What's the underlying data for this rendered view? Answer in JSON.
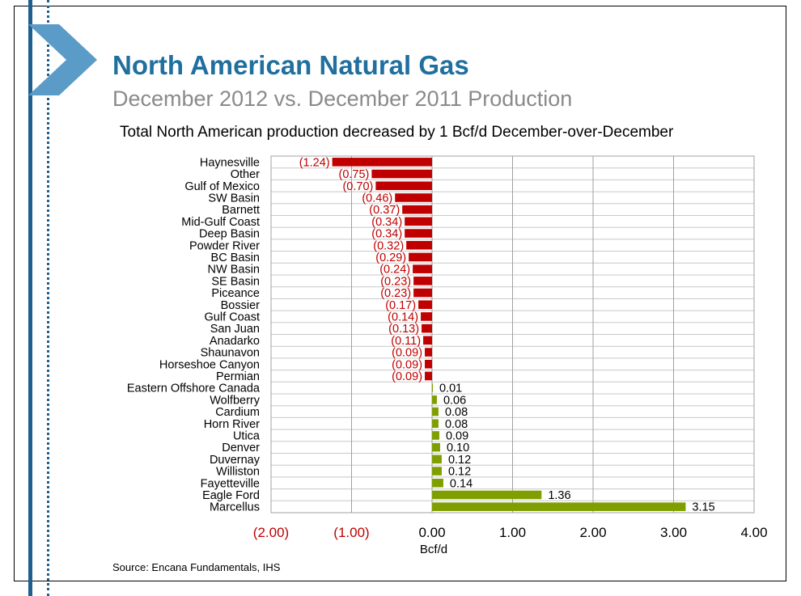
{
  "slide": {
    "title": "North American Natural Gas",
    "subtitle": "December 2012 vs. December 2011 Production",
    "headline": "Total North American production decreased by 1 Bcf/d December-over-December",
    "source": "Source: Encana Fundamentals, IHS",
    "accent_color": "#1f6f9f"
  },
  "chart_data": {
    "type": "bar",
    "orientation": "horizontal",
    "xlabel": "Bcf/d",
    "ylabel": "",
    "xlim": [
      -2,
      4
    ],
    "x_ticks": [
      -2,
      -1,
      0,
      1,
      2,
      3,
      4
    ],
    "x_tick_labels": [
      "(2.00)",
      "(1.00)",
      "0.00",
      "1.00",
      "2.00",
      "3.00",
      "4.00"
    ],
    "grid": "vertical",
    "negative_color": "#c00000",
    "positive_color": "#7f9f00",
    "categories": [
      "Haynesville",
      "Other",
      "Gulf of Mexico",
      "SW Basin",
      "Barnett",
      "Mid-Gulf Coast",
      "Deep Basin",
      "Powder River",
      "BC Basin",
      "NW Basin",
      "SE Basin",
      "Piceance",
      "Bossier",
      "Gulf Coast",
      "San Juan",
      "Anadarko",
      "Shaunavon",
      "Horseshoe Canyon",
      "Permian",
      "Eastern Offshore Canada",
      "Wolfberry",
      "Cardium",
      "Horn River",
      "Utica",
      "Denver",
      "Duvernay",
      "Williston",
      "Fayetteville",
      "Eagle Ford",
      "Marcellus"
    ],
    "values": [
      -1.24,
      -0.75,
      -0.7,
      -0.46,
      -0.37,
      -0.34,
      -0.34,
      -0.32,
      -0.29,
      -0.24,
      -0.23,
      -0.23,
      -0.17,
      -0.14,
      -0.13,
      -0.11,
      -0.09,
      -0.09,
      -0.09,
      0.01,
      0.06,
      0.08,
      0.08,
      0.09,
      0.1,
      0.12,
      0.12,
      0.14,
      1.36,
      3.15
    ],
    "labels": [
      "(1.24)",
      "(0.75)",
      "(0.70)",
      "(0.46)",
      "(0.37)",
      "(0.34)",
      "(0.34)",
      "(0.32)",
      "(0.29)",
      "(0.24)",
      "(0.23)",
      "(0.23)",
      "(0.17)",
      "(0.14)",
      "(0.13)",
      "(0.11)",
      "(0.09)",
      "(0.09)",
      "(0.09)",
      "0.01",
      "0.06",
      "0.08",
      "0.08",
      "0.09",
      "0.10",
      "0.12",
      "0.12",
      "0.14",
      "1.36",
      "3.15"
    ]
  }
}
